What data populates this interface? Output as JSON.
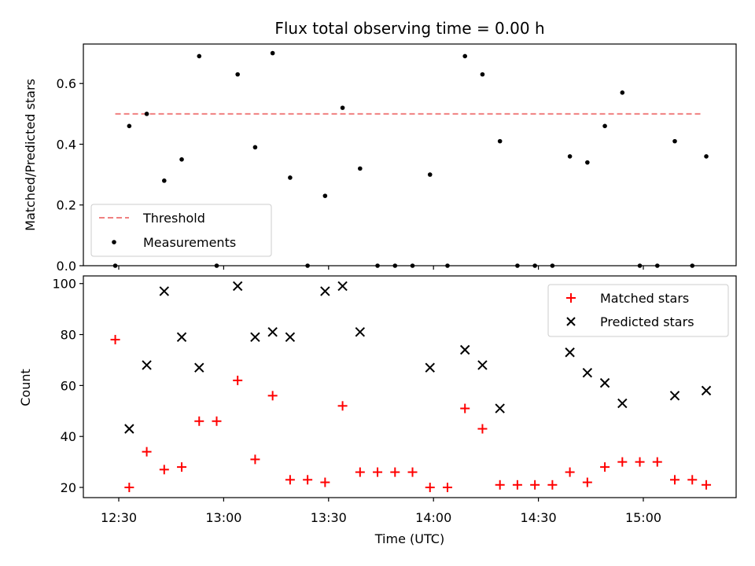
{
  "chart_data": [
    {
      "type": "scatter",
      "title": "Flux total observing time = 0.00 h",
      "xlabel": "",
      "ylabel": "Matched/Predicted stars",
      "ylim": [
        0,
        0.73
      ],
      "yticks": [
        "0.0",
        "0.2",
        "0.4",
        "0.6"
      ],
      "grid": false,
      "legend_position": "lower-left",
      "threshold": {
        "name": "Threshold",
        "value": 0.5,
        "x_range": [
          "12:29",
          "15:17"
        ],
        "color": "#f08080"
      },
      "series": [
        {
          "name": "Measurements",
          "color": "#000000",
          "x": [
            "12:29",
            "12:33",
            "12:38",
            "12:43",
            "12:48",
            "12:53",
            "12:58",
            "13:04",
            "13:09",
            "13:14",
            "13:19",
            "13:24",
            "13:29",
            "13:34",
            "13:39",
            "13:44",
            "13:49",
            "13:54",
            "13:59",
            "14:04",
            "14:09",
            "14:14",
            "14:19",
            "14:24",
            "14:29",
            "14:34",
            "14:39",
            "14:44",
            "14:49",
            "14:54",
            "14:59",
            "15:04",
            "15:09",
            "15:14",
            "15:18"
          ],
          "y": [
            0.0,
            0.46,
            0.5,
            0.28,
            0.35,
            0.69,
            0.0,
            0.63,
            0.39,
            0.7,
            0.29,
            0.0,
            0.23,
            0.52,
            0.32,
            0.0,
            0.0,
            0.0,
            0.3,
            0.0,
            0.69,
            0.63,
            0.41,
            0.0,
            0.0,
            0.0,
            0.36,
            0.34,
            0.46,
            0.57,
            0.0,
            0.0,
            0.41,
            0.0,
            0.36
          ]
        }
      ]
    },
    {
      "type": "scatter",
      "title": "",
      "xlabel": "Time (UTC)",
      "ylabel": "Count",
      "ylim": [
        16,
        103
      ],
      "yticks": [
        "20",
        "40",
        "60",
        "80",
        "100"
      ],
      "xticks": [
        "12:30",
        "13:00",
        "13:30",
        "14:00",
        "14:30",
        "15:00"
      ],
      "grid": false,
      "legend_position": "top-right",
      "series": [
        {
          "name": "Matched stars",
          "marker": "plus",
          "color": "#ff0000",
          "x": [
            "12:29",
            "12:33",
            "12:38",
            "12:43",
            "12:48",
            "12:53",
            "12:58",
            "13:04",
            "13:09",
            "13:14",
            "13:19",
            "13:24",
            "13:29",
            "13:34",
            "13:39",
            "13:44",
            "13:49",
            "13:54",
            "13:59",
            "14:04",
            "14:09",
            "14:14",
            "14:19",
            "14:24",
            "14:29",
            "14:34",
            "14:39",
            "14:44",
            "14:49",
            "14:54",
            "14:59",
            "15:04",
            "15:09",
            "15:14",
            "15:18"
          ],
          "y": [
            78,
            20,
            34,
            27,
            28,
            46,
            46,
            62,
            31,
            56,
            23,
            23,
            22,
            52,
            26,
            26,
            26,
            26,
            20,
            20,
            51,
            43,
            21,
            21,
            21,
            21,
            26,
            22,
            28,
            30,
            30,
            30,
            23,
            23,
            21
          ]
        },
        {
          "name": "Predicted stars",
          "marker": "x",
          "color": "#000000",
          "x": [
            "12:33",
            "12:38",
            "12:43",
            "12:48",
            "12:53",
            "13:04",
            "13:09",
            "13:14",
            "13:19",
            "13:29",
            "13:34",
            "13:39",
            "13:59",
            "14:09",
            "14:14",
            "14:19",
            "14:39",
            "14:44",
            "14:49",
            "14:54",
            "15:09",
            "15:18"
          ],
          "y": [
            43,
            68,
            97,
            79,
            67,
            99,
            79,
            81,
            79,
            97,
            99,
            81,
            67,
            74,
            68,
            51,
            73,
            65,
            61,
            53,
            56,
            58
          ]
        }
      ]
    }
  ]
}
